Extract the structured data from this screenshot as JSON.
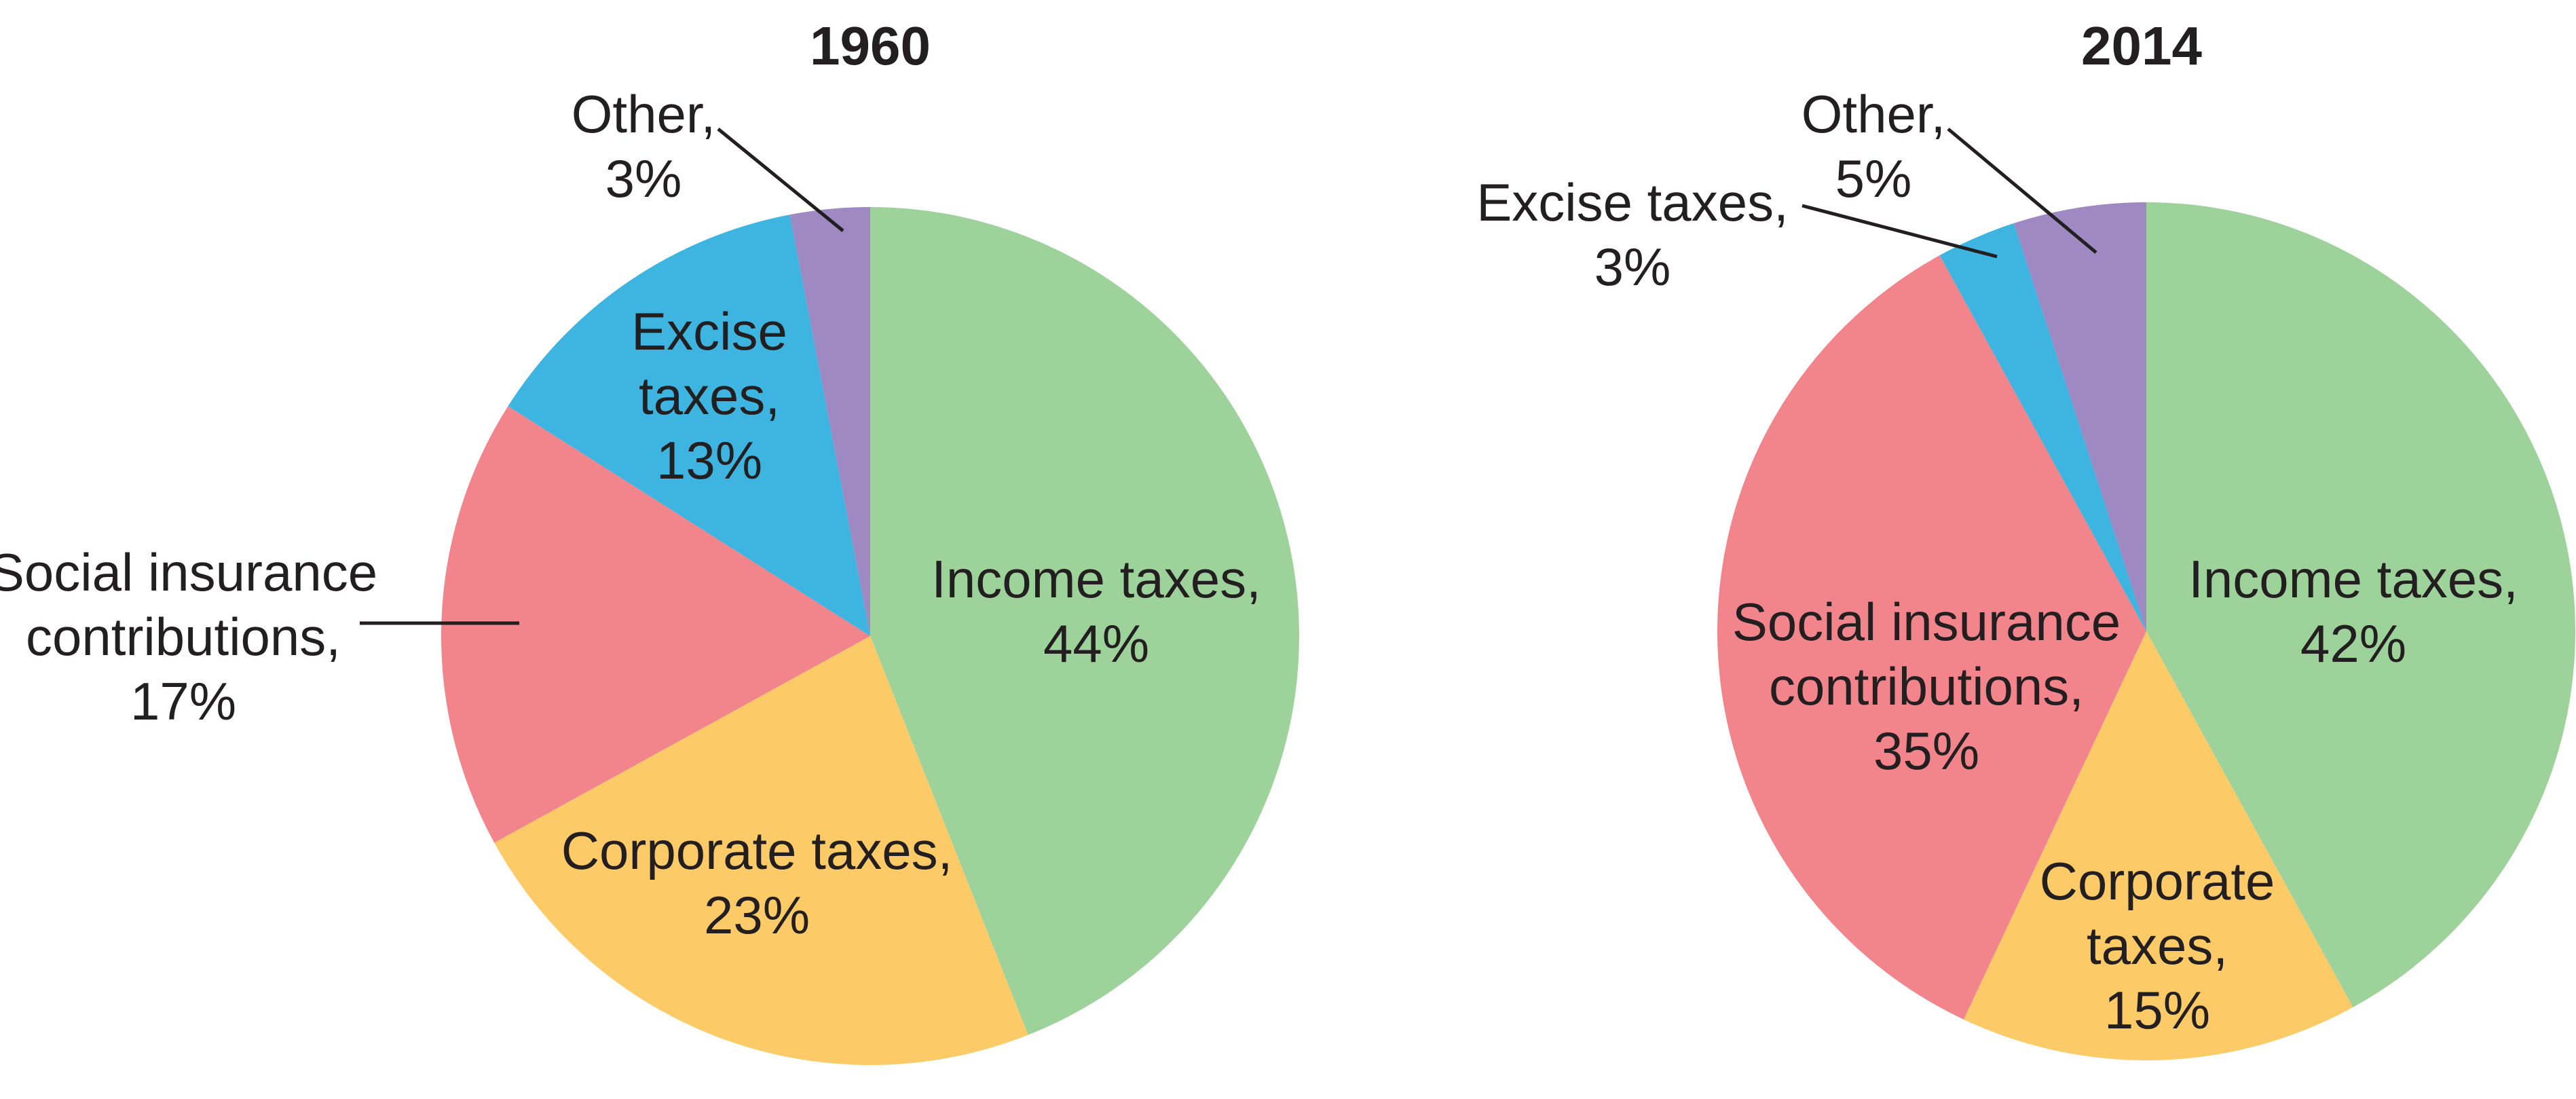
{
  "chart_data": [
    {
      "type": "pie",
      "title": "1960",
      "slices": [
        {
          "name": "Income taxes",
          "value": 44,
          "label_lines": [
            "Income taxes,",
            "44%"
          ],
          "color": "#9ed29b"
        },
        {
          "name": "Corporate taxes",
          "value": 23,
          "label_lines": [
            "Corporate taxes,",
            "23%"
          ],
          "color": "#fccb67"
        },
        {
          "name": "Social insurance contributions",
          "value": 17,
          "label_lines": [
            "Social insurance",
            "contributions,",
            "17%"
          ],
          "color": "#f2848c"
        },
        {
          "name": "Excise taxes",
          "value": 13,
          "label_lines": [
            "Excise",
            "taxes,",
            "13%"
          ],
          "color": "#3db5e0"
        },
        {
          "name": "Other",
          "value": 3,
          "label_lines": [
            "Other,",
            "3%"
          ],
          "color": "#9e89c2"
        }
      ]
    },
    {
      "type": "pie",
      "title": "2014",
      "slices": [
        {
          "name": "Income taxes",
          "value": 42,
          "label_lines": [
            "Income taxes,",
            "42%"
          ],
          "color": "#9ed29b"
        },
        {
          "name": "Corporate taxes",
          "value": 15,
          "label_lines": [
            "Corporate",
            "taxes,",
            "15%"
          ],
          "color": "#fccb67"
        },
        {
          "name": "Social insurance contributions",
          "value": 35,
          "label_lines": [
            "Social insurance",
            "contributions,",
            "35%"
          ],
          "color": "#f2848c"
        },
        {
          "name": "Excise taxes",
          "value": 3,
          "label_lines": [
            "Excise taxes,",
            "3%"
          ],
          "color": "#3db5e0"
        },
        {
          "name": "Other",
          "value": 5,
          "label_lines": [
            "Other,",
            "5%"
          ],
          "color": "#9e89c2"
        }
      ]
    }
  ]
}
